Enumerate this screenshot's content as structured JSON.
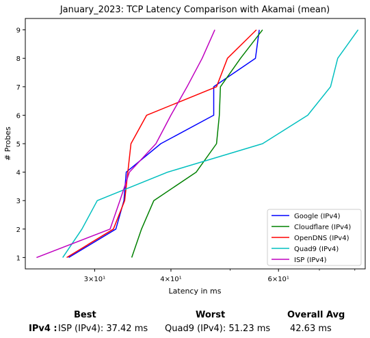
{
  "chart_data": {
    "type": "line",
    "title": "January_2023: TCP Latency Comparison with Akamai (mean)",
    "xlabel": "Latency in ms",
    "ylabel": "# Probes",
    "x_scale": "log",
    "xlim": [
      23.1,
      83.2
    ],
    "ylim": [
      0.6,
      9.4
    ],
    "x_ticks": [
      {
        "value": 30,
        "label": "3×10¹"
      },
      {
        "value": 40,
        "label": "4×10¹"
      },
      {
        "value": 60,
        "label": "6×10¹"
      }
    ],
    "y_ticks": [
      1,
      2,
      3,
      4,
      5,
      6,
      7,
      8,
      9
    ],
    "grid": false,
    "legend": "bottom-right",
    "series": [
      {
        "name": "Google (IPv4)",
        "color": "#0000ff",
        "points": [
          [
            27.2,
            1
          ],
          [
            32.5,
            2
          ],
          [
            33.5,
            3
          ],
          [
            33.8,
            4
          ],
          [
            38.5,
            5
          ],
          [
            47.0,
            6
          ],
          [
            47.0,
            7
          ],
          [
            55.0,
            8
          ],
          [
            55.8,
            9
          ]
        ]
      },
      {
        "name": "Cloudflare (IPv4)",
        "color": "#008000",
        "points": [
          [
            34.5,
            1
          ],
          [
            35.8,
            2
          ],
          [
            37.5,
            3
          ],
          [
            44.0,
            4
          ],
          [
            47.5,
            5
          ],
          [
            48.0,
            6
          ],
          [
            48.2,
            7
          ],
          [
            52.0,
            8
          ],
          [
            56.5,
            9
          ]
        ]
      },
      {
        "name": "OpenDNS (IPv4)",
        "color": "#ff0000",
        "points": [
          [
            27.0,
            1
          ],
          [
            32.2,
            2
          ],
          [
            33.6,
            3
          ],
          [
            34.0,
            4
          ],
          [
            34.4,
            5
          ],
          [
            36.5,
            6
          ],
          [
            47.5,
            7
          ],
          [
            49.5,
            8
          ],
          [
            55.2,
            9
          ]
        ]
      },
      {
        "name": "Quad9 (IPv4)",
        "color": "#00bfbf",
        "points": [
          [
            26.6,
            1
          ],
          [
            28.6,
            2
          ],
          [
            30.3,
            3
          ],
          [
            39.5,
            4
          ],
          [
            56.5,
            5
          ],
          [
            67.0,
            6
          ],
          [
            73.0,
            7
          ],
          [
            75.0,
            8
          ],
          [
            81.0,
            9
          ]
        ]
      },
      {
        "name": "ISP (IPv4)",
        "color": "#bf00bf",
        "points": [
          [
            24.1,
            1
          ],
          [
            31.8,
            2
          ],
          [
            33.0,
            3
          ],
          [
            34.2,
            4
          ],
          [
            37.8,
            5
          ],
          [
            40.0,
            6
          ],
          [
            42.5,
            7
          ],
          [
            45.0,
            8
          ],
          [
            47.2,
            9
          ]
        ]
      }
    ]
  },
  "stats": {
    "best_header": "Best",
    "worst_header": "Worst",
    "overall_header": "Overall Avg",
    "row_label": "IPv4 :",
    "best_value": "ISP (IPv4): 37.42 ms",
    "worst_value": "Quad9 (IPv4): 51.23 ms",
    "overall_value": "42.63 ms"
  }
}
